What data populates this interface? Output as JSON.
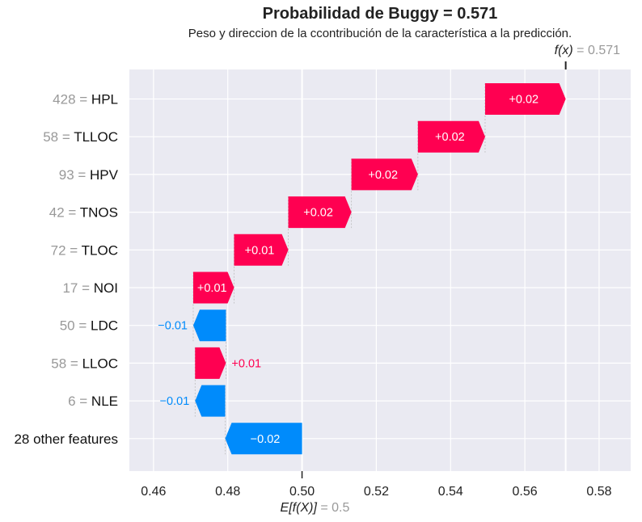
{
  "chart_data": {
    "type": "waterfall",
    "title": "Probabilidad de Buggy = 0.571",
    "subtitle": "Peso y direccion de la ccontribución de la característica a la predicción.",
    "fx_label": "f(x)",
    "fx_value": "= 0.571",
    "base_label": "E[f(X)]",
    "base_value_label": "= 0.5",
    "base_value": 0.5,
    "final_value": 0.571,
    "xlim": [
      0.4535,
      0.5885
    ],
    "x_ticks": [
      0.46,
      0.48,
      0.5,
      0.52,
      0.54,
      0.56,
      0.58
    ],
    "x_tick_labels": [
      "0.46",
      "0.48",
      "0.50",
      "0.52",
      "0.54",
      "0.56",
      "0.58"
    ],
    "grid": true,
    "colors": {
      "positive": "#ff0051",
      "negative": "#008bfb",
      "background": "#eaeaf2",
      "grid": "#ffffff",
      "value_gray": "#999999"
    },
    "features": [
      {
        "value": "428",
        "name": "HPL",
        "start": 0.5493,
        "end": 0.571,
        "label": "+0.02",
        "label_inside": true
      },
      {
        "value": "58",
        "name": "TLLOC",
        "start": 0.5312,
        "end": 0.5493,
        "label": "+0.02",
        "label_inside": true
      },
      {
        "value": "93",
        "name": "HPV",
        "start": 0.5133,
        "end": 0.5312,
        "label": "+0.02",
        "label_inside": true
      },
      {
        "value": "42",
        "name": "TNOS",
        "start": 0.4963,
        "end": 0.5133,
        "label": "+0.02",
        "label_inside": true
      },
      {
        "value": "72",
        "name": "TLOC",
        "start": 0.4817,
        "end": 0.4963,
        "label": "+0.01",
        "label_inside": true
      },
      {
        "value": "17",
        "name": "NOI",
        "start": 0.4707,
        "end": 0.4817,
        "label": "+0.01",
        "label_inside": true
      },
      {
        "value": "50",
        "name": "LDC",
        "start": 0.4795,
        "end": 0.4707,
        "label": "−0.01",
        "label_inside": false
      },
      {
        "value": "58",
        "name": "LLOC",
        "start": 0.4712,
        "end": 0.4795,
        "label": "+0.01",
        "label_inside": false
      },
      {
        "value": "6",
        "name": "NLE",
        "start": 0.4793,
        "end": 0.4712,
        "label": "−0.01",
        "label_inside": false
      },
      {
        "value": "",
        "name": "28 other features",
        "start": 0.5,
        "end": 0.4793,
        "label": "−0.02",
        "label_inside": true
      }
    ]
  }
}
